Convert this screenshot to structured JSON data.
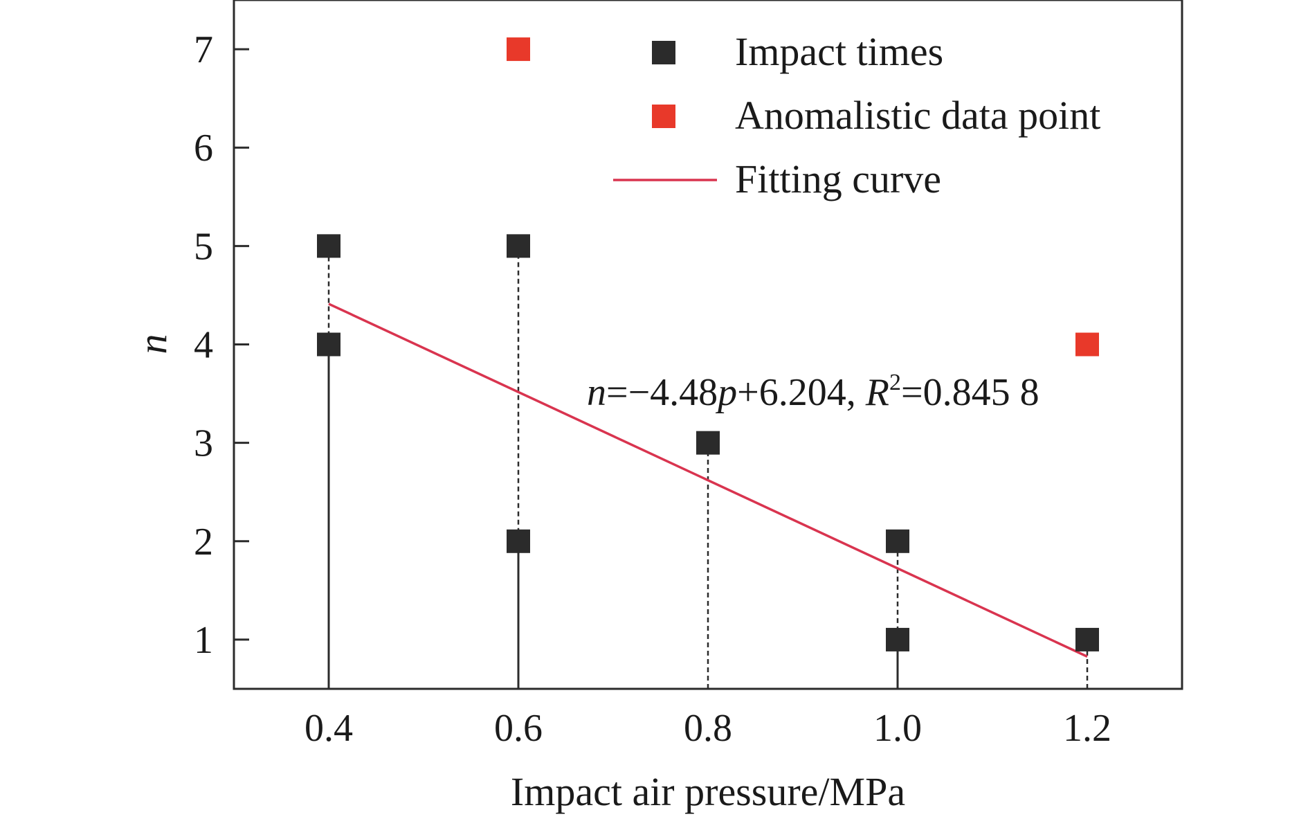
{
  "chart_data": {
    "type": "scatter",
    "xlabel": "Impact air pressure/MPa",
    "ylabel": "n",
    "xlim": [
      0.3,
      1.3
    ],
    "ylim": [
      0.5,
      7.5
    ],
    "xticks": [
      "0.4",
      "0.6",
      "0.8",
      "1.0",
      "1.2"
    ],
    "xtick_values": [
      0.4,
      0.6,
      0.8,
      1.0,
      1.2
    ],
    "yticks": [
      "1",
      "2",
      "3",
      "4",
      "5",
      "6",
      "7"
    ],
    "ytick_values": [
      1,
      2,
      3,
      4,
      5,
      6,
      7
    ],
    "series": [
      {
        "name": "Impact times",
        "color": "#2b2b2b",
        "marker": "square",
        "points": [
          {
            "x": 0.4,
            "y": 4
          },
          {
            "x": 0.4,
            "y": 5
          },
          {
            "x": 0.6,
            "y": 2
          },
          {
            "x": 0.6,
            "y": 5
          },
          {
            "x": 0.8,
            "y": 3
          },
          {
            "x": 1.0,
            "y": 1
          },
          {
            "x": 1.0,
            "y": 2
          },
          {
            "x": 1.2,
            "y": 1
          }
        ]
      },
      {
        "name": "Anomalistic data point",
        "color": "#e8392a",
        "marker": "square",
        "points": [
          {
            "x": 0.6,
            "y": 7
          },
          {
            "x": 1.2,
            "y": 4
          }
        ]
      },
      {
        "name": "Fitting curve",
        "color": "#d9344f",
        "type": "line",
        "x_range": [
          0.4,
          1.2
        ],
        "slope": -4.48,
        "intercept": 6.204
      }
    ],
    "range_lines": [
      {
        "x": 0.4,
        "solid": [
          0.5,
          4
        ],
        "dashed": [
          4,
          5
        ]
      },
      {
        "x": 0.6,
        "solid": [
          0.5,
          2
        ],
        "dashed": [
          2,
          5
        ]
      },
      {
        "x": 0.8,
        "solid": [
          0.5,
          0.5
        ],
        "dashed": [
          0.5,
          3
        ]
      },
      {
        "x": 1.0,
        "solid": [
          0.5,
          1
        ],
        "dashed": [
          1,
          2
        ]
      },
      {
        "x": 1.2,
        "solid": [
          0.5,
          0.5
        ],
        "dashed": [
          0.5,
          1
        ]
      }
    ],
    "annotation": {
      "n_var": "n",
      "equation_mid": "=−4.48",
      "p_var": "p",
      "equation_tail": "+6.204, ",
      "r_var": "R",
      "r_sup": "2",
      "r_value": "=0.845 8"
    },
    "legend_position": "top-right",
    "grid": false
  }
}
